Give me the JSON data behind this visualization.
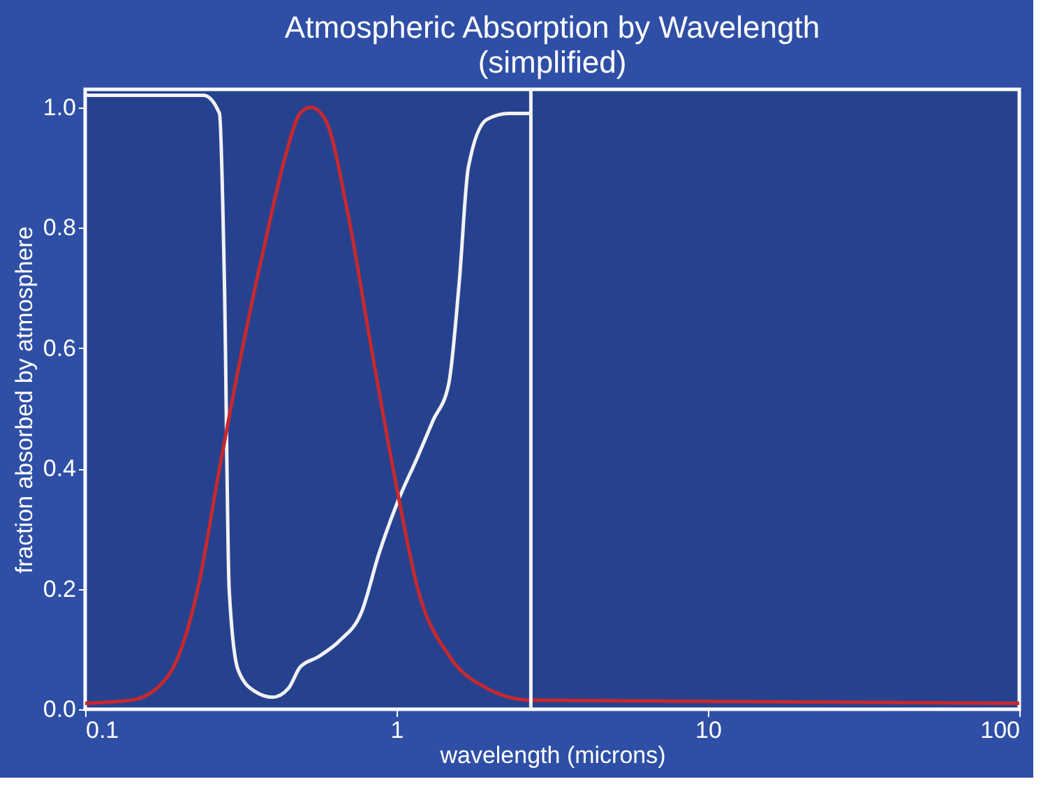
{
  "chart_data": {
    "type": "line",
    "title": "Atmospheric Absorption by Wavelength",
    "subtitle": "(simplified)",
    "xlabel": "wavelength (microns)",
    "ylabel": "fraction absorbed by atmosphere",
    "log": "x",
    "xlim": [
      0.1,
      100
    ],
    "xticks": [
      0.1,
      1,
      10,
      100
    ],
    "ylim": [
      0,
      1.03
    ],
    "yticks": [
      {
        "value": 0,
        "label": "0.0"
      },
      0.2,
      0.4,
      0.6,
      0.8,
      {
        "value": 1,
        "label": "1.0"
      }
    ],
    "grid": false,
    "line_style": "solid",
    "marker": "none",
    "series": [
      {
        "color": "#f2f2f2",
        "x": [
          0.1,
          0.24,
          0.27,
          0.28,
          0.29,
          0.31,
          0.35,
          0.4,
          0.45,
          0.49,
          0.56,
          0.66,
          0.77,
          0.88,
          1.0,
          1.17,
          1.31,
          1.47,
          1.59,
          1.7,
          1.95,
          2.3,
          2.7
        ],
        "values": [
          1.02,
          1.02,
          0.99,
          0.71,
          0.2,
          0.065,
          0.03,
          0.02,
          0.035,
          0.07,
          0.087,
          0.115,
          0.16,
          0.26,
          0.34,
          0.42,
          0.48,
          0.54,
          0.71,
          0.9,
          0.98,
          0.99,
          0.99
        ]
      },
      {
        "color": "#c8282d",
        "x": [
          0.1,
          0.14,
          0.17,
          0.2,
          0.23,
          0.27,
          0.32,
          0.38,
          0.44,
          0.49,
          0.53,
          0.59,
          0.7,
          0.83,
          1.0,
          1.17,
          1.47,
          1.95,
          2.7,
          100
        ],
        "values": [
          0.01,
          0.015,
          0.035,
          0.09,
          0.2,
          0.4,
          0.6,
          0.78,
          0.92,
          0.99,
          1.0,
          0.98,
          0.82,
          0.6,
          0.37,
          0.2,
          0.09,
          0.035,
          0.015,
          0.01
        ]
      }
    ],
    "ref_lines": [
      {
        "axis": "x",
        "value": 2.7,
        "color": "#f2f2f2"
      }
    ]
  }
}
